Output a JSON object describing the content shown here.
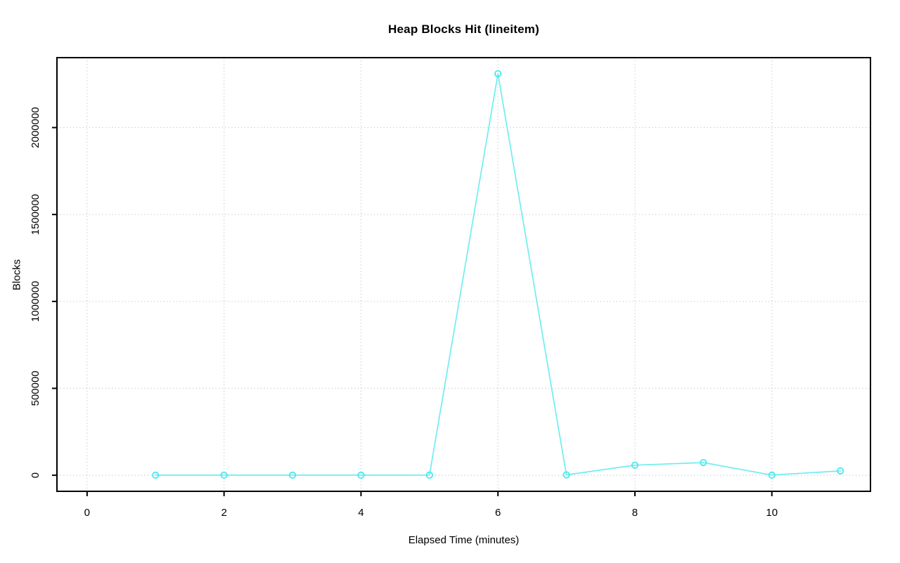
{
  "chart_data": {
    "type": "line",
    "title": "Heap Blocks Hit (lineitem)",
    "xlabel": "Elapsed Time (minutes)",
    "ylabel": "Blocks",
    "x": [
      1,
      2,
      3,
      4,
      5,
      6,
      7,
      8,
      9,
      10,
      11
    ],
    "series": [
      {
        "name": "",
        "values": [
          500,
          500,
          500,
          500,
          1000,
          2310000,
          2000,
          58000,
          73000,
          1000,
          25000
        ]
      }
    ],
    "xlim": [
      -0.44,
      11.44
    ],
    "ylim": [
      -92400,
      2402400
    ],
    "x_ticks": [
      0,
      2,
      4,
      6,
      8,
      10
    ],
    "x_tick_labels": [
      "0",
      "2",
      "4",
      "6",
      "8",
      "10"
    ],
    "y_ticks": [
      0,
      500000,
      1000000,
      1500000,
      2000000
    ],
    "y_tick_labels": [
      "0",
      "500000",
      "1000000",
      "1500000",
      "2000000"
    ],
    "grid": true,
    "grid_style": "dotted",
    "marker": "open-circle",
    "legend_position": "none",
    "colors": {
      "line": "#6FEDF1",
      "marker": "#49E8EE",
      "grid": "#C9C9C9",
      "axis": "#000000",
      "text": "#000000",
      "background": "#FFFFFF"
    }
  }
}
